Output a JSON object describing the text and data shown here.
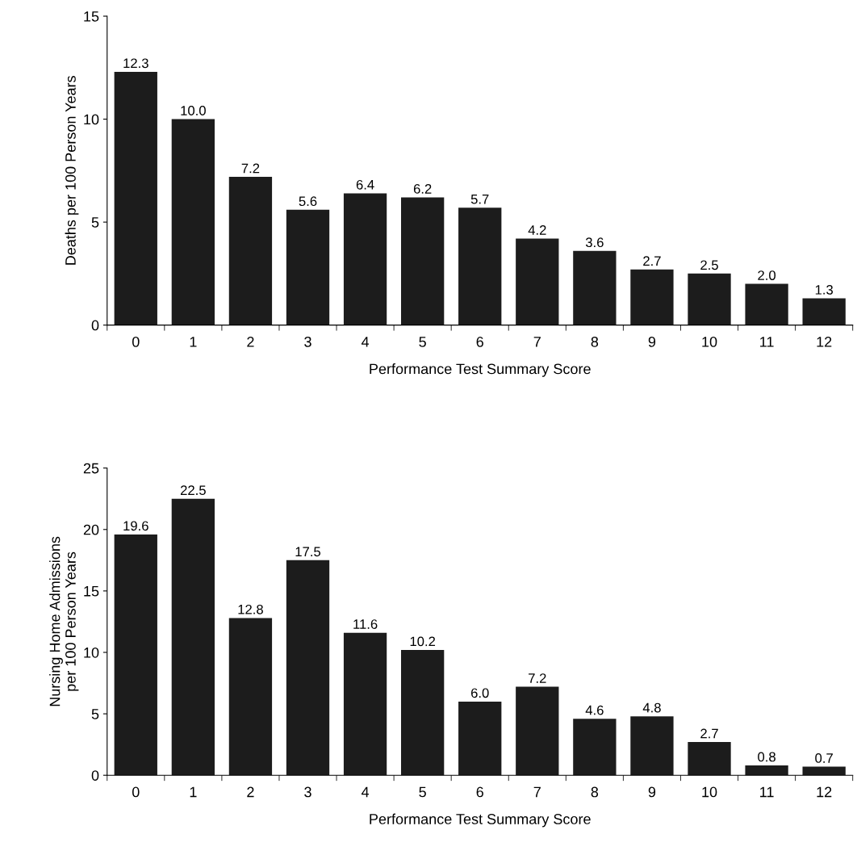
{
  "chart_data": [
    {
      "type": "bar",
      "xlabel": "Performance Test Summary Score",
      "ylabel": "Deaths per 100 Person Years",
      "categories": [
        "0",
        "1",
        "2",
        "3",
        "4",
        "5",
        "6",
        "7",
        "8",
        "9",
        "10",
        "11",
        "12"
      ],
      "values": [
        12.3,
        10.0,
        7.2,
        5.6,
        6.4,
        6.2,
        5.7,
        4.2,
        3.6,
        2.7,
        2.5,
        2.0,
        1.3
      ],
      "value_labels": [
        "12.3",
        "10.0",
        "7.2",
        "5.6",
        "6.4",
        "6.2",
        "5.7",
        "4.2",
        "3.6",
        "2.7",
        "2.5",
        "2.0",
        "1.3"
      ],
      "color": "#1c1c1c",
      "ylim": [
        0,
        15
      ],
      "yticks": [
        0,
        5,
        10,
        15
      ],
      "grid": false
    },
    {
      "type": "bar",
      "xlabel": "Performance Test Summary Score",
      "ylabel": "Nursing Home Admissions\nper 100 Person Years",
      "categories": [
        "0",
        "1",
        "2",
        "3",
        "4",
        "5",
        "6",
        "7",
        "8",
        "9",
        "10",
        "11",
        "12"
      ],
      "values": [
        19.6,
        22.5,
        12.8,
        17.5,
        11.6,
        10.2,
        6.0,
        7.2,
        4.6,
        4.8,
        2.7,
        0.8,
        0.7
      ],
      "value_labels": [
        "19.6",
        "22.5",
        "12.8",
        "17.5",
        "11.6",
        "10.2",
        "6.0",
        "7.2",
        "4.6",
        "4.8",
        "2.7",
        "0.8",
        "0.7"
      ],
      "color": "#1c1c1c",
      "ylim": [
        0,
        25
      ],
      "yticks": [
        0,
        5,
        10,
        15,
        20,
        25
      ],
      "grid": false
    }
  ]
}
